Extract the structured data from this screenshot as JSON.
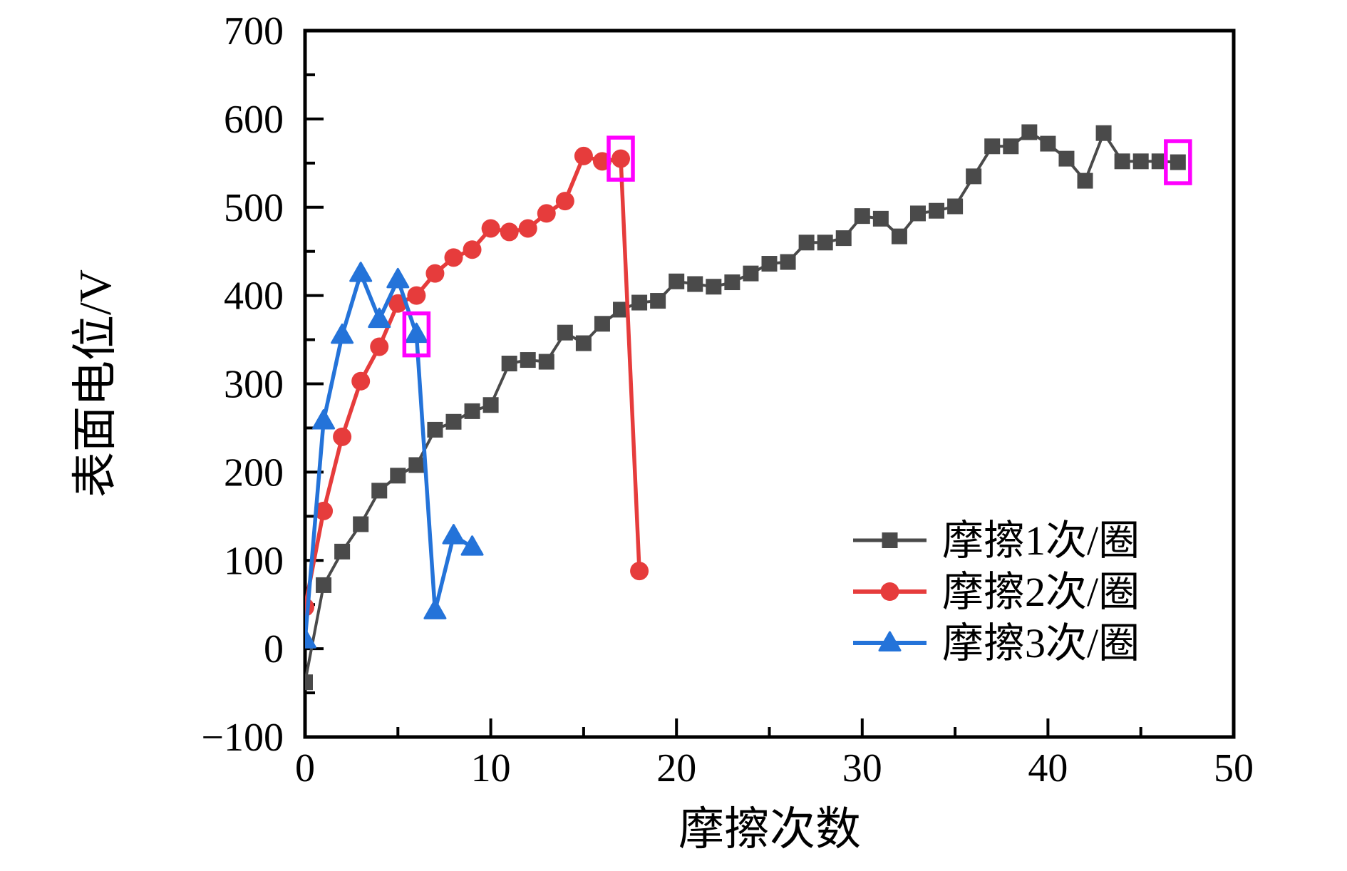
{
  "figure": {
    "background_color": "#ffffff",
    "axis_color": "#000000",
    "text_color": "#000000",
    "highlight_color": "#ff00ff"
  },
  "chart_data": {
    "type": "line",
    "title": "",
    "xlabel": "摩擦次数",
    "ylabel": "表面电位/V",
    "xlim": [
      0,
      50
    ],
    "ylim": [
      -100,
      700
    ],
    "grid": false,
    "legend_position": "right-center",
    "x_ticks": [
      {
        "v": 0,
        "label": "0"
      },
      {
        "v": 10,
        "label": "10"
      },
      {
        "v": 20,
        "label": "20"
      },
      {
        "v": 30,
        "label": "30"
      },
      {
        "v": 40,
        "label": "40"
      },
      {
        "v": 50,
        "label": "50"
      }
    ],
    "x_minor_ticks": [
      5,
      15,
      25,
      35,
      45
    ],
    "y_ticks": [
      {
        "v": -100,
        "label": "−100"
      },
      {
        "v": 0,
        "label": "0"
      },
      {
        "v": 100,
        "label": "100"
      },
      {
        "v": 200,
        "label": "200"
      },
      {
        "v": 300,
        "label": "300"
      },
      {
        "v": 400,
        "label": "400"
      },
      {
        "v": 500,
        "label": "500"
      },
      {
        "v": 600,
        "label": "600"
      },
      {
        "v": 700,
        "label": "700"
      }
    ],
    "y_minor_ticks": [
      -50,
      50,
      150,
      250,
      350,
      450,
      550,
      650
    ],
    "series": [
      {
        "name": "摩擦1次/圈",
        "color": "#4a4a4a",
        "marker": "square",
        "x": [
          0,
          1,
          2,
          3,
          4,
          5,
          6,
          7,
          8,
          9,
          10,
          11,
          12,
          13,
          14,
          15,
          16,
          17,
          18,
          19,
          20,
          21,
          22,
          23,
          24,
          25,
          26,
          27,
          28,
          29,
          30,
          31,
          32,
          33,
          34,
          35,
          36,
          37,
          38,
          39,
          40,
          41,
          42,
          43,
          44,
          45,
          46,
          47
        ],
        "y": [
          -38,
          72,
          110,
          141,
          179,
          196,
          208,
          248,
          257,
          269,
          276,
          323,
          327,
          325,
          358,
          346,
          368,
          384,
          392,
          394,
          416,
          413,
          410,
          415,
          425,
          436,
          438,
          460,
          460,
          465,
          490,
          487,
          467,
          493,
          496,
          501,
          535,
          569,
          569,
          585,
          572,
          555,
          530,
          584,
          552,
          552,
          552,
          551
        ]
      },
      {
        "name": "摩擦2次/圈",
        "color": "#e63c3c",
        "marker": "circle",
        "x": [
          0,
          1,
          2,
          3,
          4,
          5,
          6,
          7,
          8,
          9,
          10,
          11,
          12,
          13,
          14,
          15,
          16,
          17,
          18
        ],
        "y": [
          47,
          156,
          240,
          303,
          342,
          391,
          400,
          425,
          443,
          452,
          476,
          472,
          476,
          493,
          507,
          558,
          552,
          555,
          88
        ]
      },
      {
        "name": "摩擦3次/圈",
        "color": "#2473d9",
        "marker": "triangle",
        "x": [
          0,
          1,
          2,
          3,
          4,
          5,
          6,
          7,
          8,
          9
        ],
        "y": [
          10,
          258,
          355,
          425,
          373,
          418,
          356,
          43,
          128,
          115
        ]
      }
    ],
    "highlighted_points": [
      {
        "series": "摩擦3次/圈",
        "x": 6,
        "y": 356
      },
      {
        "series": "摩擦2次/圈",
        "x": 17,
        "y": 555
      },
      {
        "series": "摩擦1次/圈",
        "x": 47,
        "y": 551
      }
    ]
  }
}
